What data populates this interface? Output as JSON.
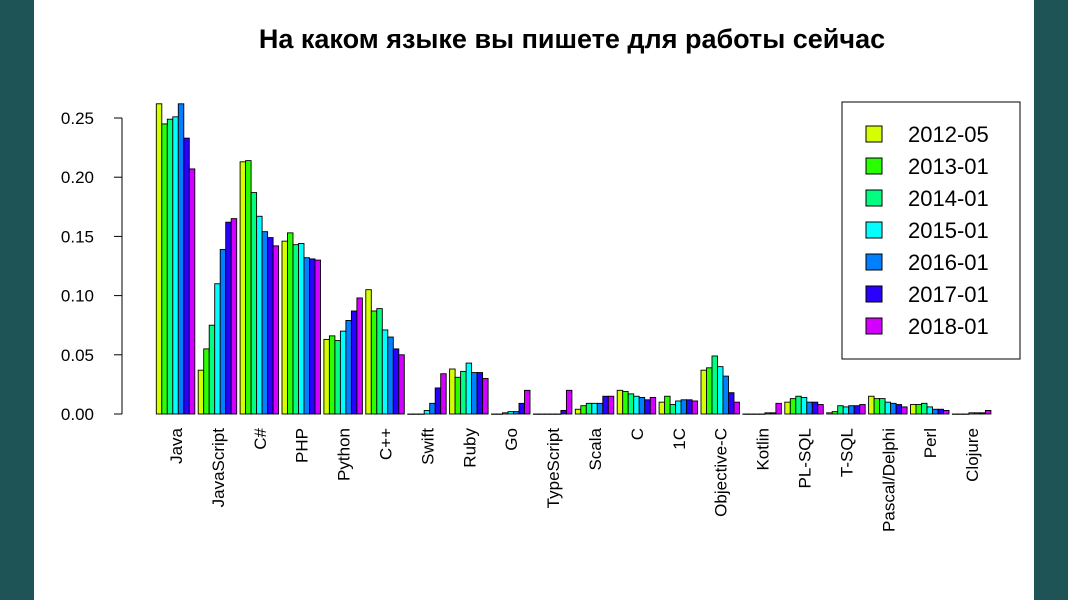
{
  "chart_data": {
    "type": "bar",
    "title": "На каком языке вы пишете для работы сейчас",
    "xlabel": "",
    "ylabel": "",
    "ylim": [
      0,
      0.27
    ],
    "yticks": [
      "0.00",
      "0.05",
      "0.10",
      "0.15",
      "0.20",
      "0.25"
    ],
    "ytick_values": [
      0,
      0.05,
      0.1,
      0.15,
      0.2,
      0.25
    ],
    "grid": false,
    "legend_position": "top-right",
    "categories": [
      "Java",
      "JavaScript",
      "C#",
      "PHP",
      "Python",
      "C++",
      "Swift",
      "Ruby",
      "Go",
      "TypeScript",
      "Scala",
      "C",
      "1C",
      "Objective-C",
      "Kotlin",
      "PL-SQL",
      "T-SQL",
      "Pascal/Delphi",
      "Perl",
      "Clojure"
    ],
    "series": [
      {
        "name": "2012-05",
        "color": "#d5ff00",
        "values": [
          0.262,
          0.037,
          0.213,
          0.146,
          0.063,
          0.105,
          0.0,
          0.038,
          0.0,
          0.0,
          0.004,
          0.02,
          0.01,
          0.037,
          0.0,
          0.01,
          0.001,
          0.015,
          0.008,
          0.0
        ]
      },
      {
        "name": "2013-01",
        "color": "#2aff00",
        "values": [
          0.245,
          0.055,
          0.214,
          0.153,
          0.066,
          0.087,
          0.0,
          0.031,
          0.0,
          0.0,
          0.007,
          0.019,
          0.015,
          0.039,
          0.0,
          0.013,
          0.002,
          0.013,
          0.008,
          0.0
        ]
      },
      {
        "name": "2014-01",
        "color": "#00ff80",
        "values": [
          0.249,
          0.075,
          0.187,
          0.143,
          0.062,
          0.089,
          0.0,
          0.036,
          0.001,
          0.0,
          0.009,
          0.017,
          0.008,
          0.049,
          0.0,
          0.015,
          0.007,
          0.013,
          0.009,
          0.0
        ]
      },
      {
        "name": "2015-01",
        "color": "#00ffff",
        "values": [
          0.251,
          0.11,
          0.167,
          0.144,
          0.07,
          0.071,
          0.003,
          0.043,
          0.002,
          0.0,
          0.009,
          0.015,
          0.011,
          0.04,
          0.0,
          0.014,
          0.006,
          0.01,
          0.006,
          0.001
        ]
      },
      {
        "name": "2016-01",
        "color": "#0080ff",
        "values": [
          0.262,
          0.139,
          0.154,
          0.132,
          0.079,
          0.065,
          0.009,
          0.035,
          0.002,
          0.0,
          0.009,
          0.014,
          0.012,
          0.032,
          0.001,
          0.01,
          0.007,
          0.009,
          0.004,
          0.001
        ]
      },
      {
        "name": "2017-01",
        "color": "#2a00ff",
        "values": [
          0.233,
          0.162,
          0.149,
          0.131,
          0.087,
          0.055,
          0.022,
          0.035,
          0.009,
          0.003,
          0.015,
          0.012,
          0.012,
          0.018,
          0.001,
          0.01,
          0.007,
          0.008,
          0.004,
          0.001
        ]
      },
      {
        "name": "2018-01",
        "color": "#d400ff",
        "values": [
          0.207,
          0.165,
          0.142,
          0.13,
          0.098,
          0.05,
          0.034,
          0.03,
          0.02,
          0.02,
          0.015,
          0.014,
          0.011,
          0.01,
          0.009,
          0.008,
          0.008,
          0.006,
          0.003,
          0.003
        ]
      }
    ]
  }
}
